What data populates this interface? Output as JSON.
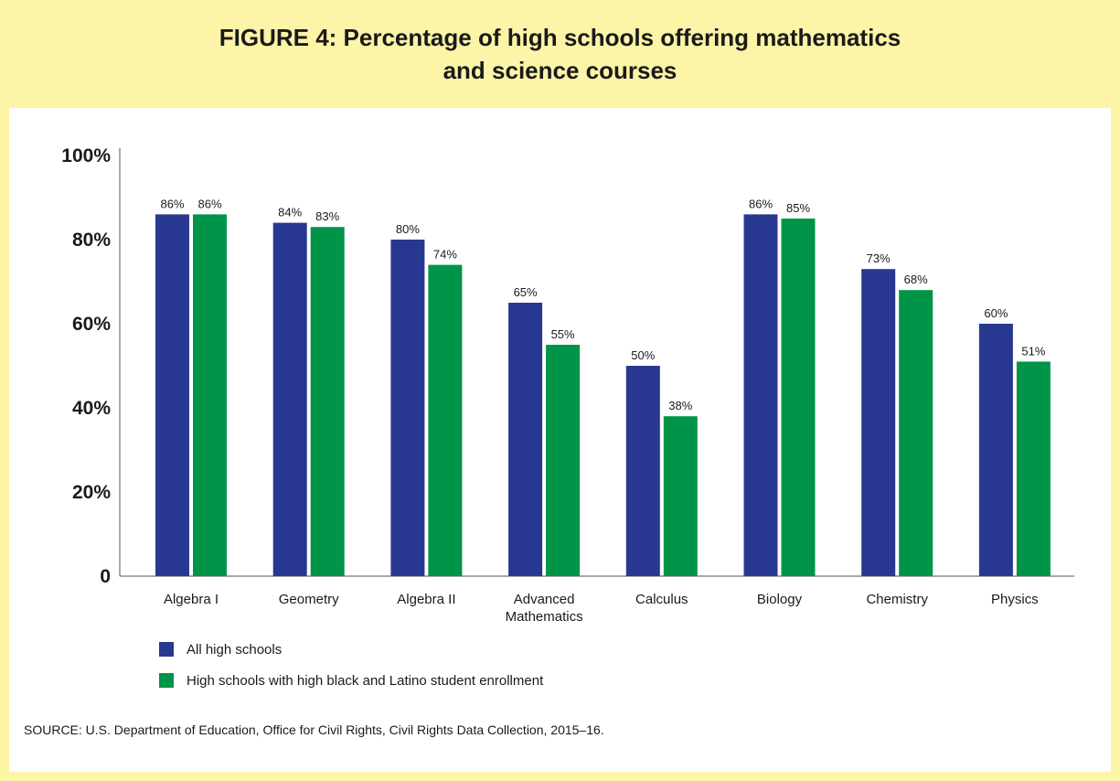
{
  "title": "FIGURE 4: Percentage of high schools offering mathematics\nand science courses",
  "source": "SOURCE: U.S. Department of Education, Office for Civil Rights, Civil Rights Data Collection, 2015–16.",
  "colors": {
    "series1": "#283891",
    "series2": "#009448",
    "header_bg": "#fcf4a6"
  },
  "chart_data": {
    "type": "bar",
    "categories": [
      "Algebra I",
      "Geometry",
      "Algebra II",
      "Advanced\nMathematics",
      "Calculus",
      "Biology",
      "Chemistry",
      "Physics"
    ],
    "series": [
      {
        "name": "All high schools",
        "values": [
          86,
          84,
          80,
          65,
          50,
          86,
          73,
          60
        ]
      },
      {
        "name": "High schools with high black and Latino student enrollment",
        "values": [
          86,
          83,
          74,
          55,
          38,
          85,
          68,
          51
        ]
      }
    ],
    "data_labels": [
      [
        "86%",
        "84%",
        "80%",
        "65%",
        "50%",
        "86%",
        "73%",
        "60%"
      ],
      [
        "86%",
        "83%",
        "74%",
        "55%",
        "38%",
        "85%",
        "68%",
        "51%"
      ]
    ],
    "yticks": [
      {
        "value": 0,
        "label": "0"
      },
      {
        "value": 20,
        "label": "20%"
      },
      {
        "value": 40,
        "label": "40%"
      },
      {
        "value": 60,
        "label": "60%"
      },
      {
        "value": 80,
        "label": "80%"
      },
      {
        "value": 100,
        "label": "100%"
      }
    ],
    "ylim": [
      0,
      100
    ],
    "grid": false,
    "legend_position": "bottom-left"
  }
}
